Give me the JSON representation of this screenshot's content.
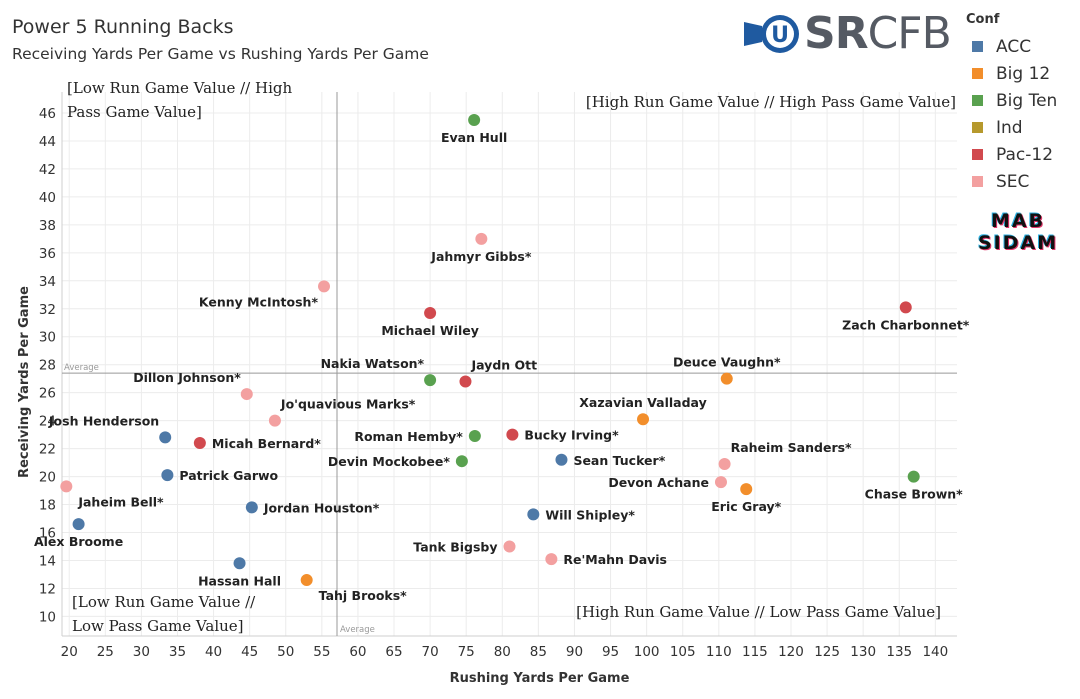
{
  "header": {
    "title": "Power 5 Running Backs",
    "subtitle": "Receiving Yards Per Game vs Rushing Yards Per Game"
  },
  "logo": {
    "prefix": "U",
    "text_bold": "SR",
    "text_thin": "CFB"
  },
  "watermark": {
    "line1": "MAB",
    "line2": "SIDAM"
  },
  "legend": {
    "title": "Conf",
    "items": [
      {
        "label": "ACC",
        "color": "#4e79a7"
      },
      {
        "label": "Big 12",
        "color": "#f28e2b"
      },
      {
        "label": "Big Ten",
        "color": "#59a14f"
      },
      {
        "label": "Ind",
        "color": "#b6992d"
      },
      {
        "label": "Pac-12",
        "color": "#d1494e"
      },
      {
        "label": "SEC",
        "color": "#f3a0a0"
      }
    ]
  },
  "chart_data": {
    "type": "scatter",
    "title": "Power 5 Running Backs",
    "subtitle": "Receiving Yards Per Game vs Rushing Yards Per Game",
    "xlabel": "Rushing Yards Per Game",
    "ylabel": "Receiving Yards Per Game",
    "xlim": [
      19,
      143
    ],
    "ylim": [
      8.6,
      47.5
    ],
    "x_ticks": [
      20,
      25,
      30,
      35,
      40,
      45,
      50,
      55,
      60,
      65,
      70,
      75,
      80,
      85,
      90,
      95,
      100,
      105,
      110,
      115,
      120,
      125,
      130,
      135,
      140
    ],
    "y_ticks": [
      10,
      12,
      14,
      16,
      18,
      20,
      22,
      24,
      26,
      28,
      30,
      32,
      34,
      36,
      38,
      40,
      42,
      44,
      46
    ],
    "grid": true,
    "legend_position": "top-right",
    "reference_lines": {
      "x_average": 57.1,
      "y_average": 27.4,
      "label": "Average"
    },
    "quadrant_labels": [
      {
        "position": "top-left",
        "lines": [
          "[Low Run Game Value // High",
          "Pass Game Value]"
        ]
      },
      {
        "position": "top-right",
        "lines": [
          "[High Run Game Value // High Pass Game Value]"
        ]
      },
      {
        "position": "bottom-left",
        "lines": [
          "[Low Run Game Value //",
          "Low Pass Game Value]"
        ]
      },
      {
        "position": "bottom-right",
        "lines": [
          "[High Run Game Value // Low Pass Game Value]"
        ]
      }
    ],
    "points": [
      {
        "name": "Evan Hull",
        "conf": "Big Ten",
        "x": 76.1,
        "y": 45.5,
        "label_pos": "below"
      },
      {
        "name": "Jahmyr Gibbs*",
        "conf": "SEC",
        "x": 77.1,
        "y": 37.0,
        "label_pos": "below"
      },
      {
        "name": "Kenny McIntosh*",
        "conf": "SEC",
        "x": 55.3,
        "y": 33.6,
        "label_pos": "below-left"
      },
      {
        "name": "Michael Wiley",
        "conf": "Pac-12",
        "x": 70.0,
        "y": 31.7,
        "label_pos": "below"
      },
      {
        "name": "Zach Charbonnet*",
        "conf": "Pac-12",
        "x": 135.9,
        "y": 32.1,
        "label_pos": "below"
      },
      {
        "name": "Nakia Watson*",
        "conf": "Big Ten",
        "x": 70.0,
        "y": 26.9,
        "label_pos": "above-left"
      },
      {
        "name": "Jaydn Ott",
        "conf": "Pac-12",
        "x": 74.9,
        "y": 26.8,
        "label_pos": "above-right"
      },
      {
        "name": "Deuce Vaughn*",
        "conf": "Big 12",
        "x": 111.1,
        "y": 27.0,
        "label_pos": "above"
      },
      {
        "name": "Dillon Johnson*",
        "conf": "SEC",
        "x": 44.6,
        "y": 25.9,
        "label_pos": "above-left"
      },
      {
        "name": "Jo'quavious Marks*",
        "conf": "SEC",
        "x": 48.5,
        "y": 24.0,
        "label_pos": "above-right"
      },
      {
        "name": "Xazavian Valladay",
        "conf": "Big 12",
        "x": 99.5,
        "y": 24.1,
        "label_pos": "above"
      },
      {
        "name": "Josh Henderson",
        "conf": "ACC",
        "x": 33.3,
        "y": 22.8,
        "label_pos": "above-left"
      },
      {
        "name": "Micah Bernard*",
        "conf": "Pac-12",
        "x": 38.1,
        "y": 22.4,
        "label_pos": "right"
      },
      {
        "name": "Roman Hemby*",
        "conf": "Big Ten",
        "x": 76.2,
        "y": 22.9,
        "label_pos": "left"
      },
      {
        "name": "Bucky Irving*",
        "conf": "Pac-12",
        "x": 81.4,
        "y": 23.0,
        "label_pos": "right"
      },
      {
        "name": "Raheim Sanders*",
        "conf": "SEC",
        "x": 110.8,
        "y": 20.9,
        "label_pos": "above-right"
      },
      {
        "name": "Devin Mockobee*",
        "conf": "Big Ten",
        "x": 74.4,
        "y": 21.1,
        "label_pos": "left"
      },
      {
        "name": "Sean Tucker*",
        "conf": "ACC",
        "x": 88.2,
        "y": 21.2,
        "label_pos": "right"
      },
      {
        "name": "Patrick Garwo",
        "conf": "ACC",
        "x": 33.6,
        "y": 20.1,
        "label_pos": "right"
      },
      {
        "name": "Chase Brown*",
        "conf": "Big Ten",
        "x": 137.0,
        "y": 20.0,
        "label_pos": "below"
      },
      {
        "name": "Devon Achane",
        "conf": "SEC",
        "x": 110.3,
        "y": 19.6,
        "label_pos": "left"
      },
      {
        "name": "Eric Gray*",
        "conf": "Big 12",
        "x": 113.8,
        "y": 19.1,
        "label_pos": "below"
      },
      {
        "name": "Jaheim Bell*",
        "conf": "SEC",
        "x": 19.6,
        "y": 19.3,
        "label_pos": "below-right"
      },
      {
        "name": "Jordan Houston*",
        "conf": "ACC",
        "x": 45.3,
        "y": 17.8,
        "label_pos": "right"
      },
      {
        "name": "Will Shipley*",
        "conf": "ACC",
        "x": 84.3,
        "y": 17.3,
        "label_pos": "right"
      },
      {
        "name": "Alex Broome",
        "conf": "ACC",
        "x": 21.3,
        "y": 16.6,
        "label_pos": "below"
      },
      {
        "name": "Tank Bigsby",
        "conf": "SEC",
        "x": 81.0,
        "y": 15.0,
        "label_pos": "left"
      },
      {
        "name": "Re'Mahn Davis",
        "conf": "SEC",
        "x": 86.8,
        "y": 14.1,
        "label_pos": "right"
      },
      {
        "name": "Hassan Hall",
        "conf": "ACC",
        "x": 43.6,
        "y": 13.8,
        "label_pos": "below"
      },
      {
        "name": "Tahj Brooks*",
        "conf": "Big 12",
        "x": 52.9,
        "y": 12.6,
        "label_pos": "below-right"
      }
    ]
  }
}
